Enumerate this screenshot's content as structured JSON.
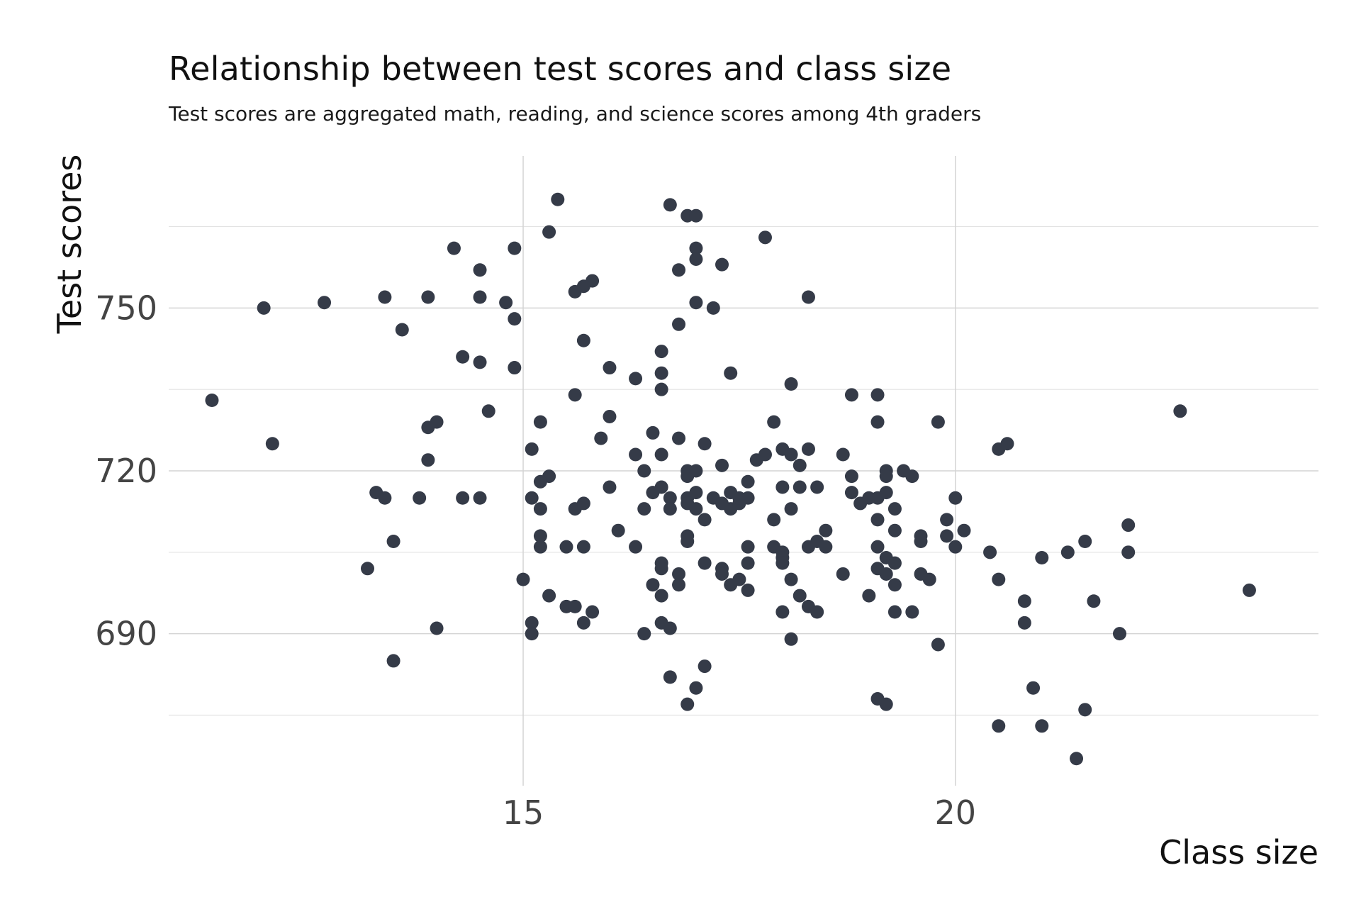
{
  "chart_data": {
    "type": "scatter",
    "title": "Relationship between test scores and class size",
    "subtitle": "Test scores are aggregated math, reading, and science scores among 4th graders",
    "xlabel": "Class size",
    "ylabel": "Test scores",
    "xlim": [
      10.9,
      24.2
    ],
    "ylim": [
      662,
      778
    ],
    "x_ticks": [
      15,
      20
    ],
    "y_ticks": [
      690,
      720,
      750
    ],
    "grid": true,
    "point_color": "#353b48",
    "points": [
      [
        15.4,
        770
      ],
      [
        16.7,
        769
      ],
      [
        16.9,
        767
      ],
      [
        17.0,
        767
      ],
      [
        15.3,
        764
      ],
      [
        17.8,
        763
      ],
      [
        14.2,
        761
      ],
      [
        14.9,
        761
      ],
      [
        17.0,
        761
      ],
      [
        17.0,
        759
      ],
      [
        14.5,
        757
      ],
      [
        16.8,
        757
      ],
      [
        17.3,
        758
      ],
      [
        15.8,
        755
      ],
      [
        15.7,
        754
      ],
      [
        15.6,
        753
      ],
      [
        12.0,
        750
      ],
      [
        12.7,
        751
      ],
      [
        13.4,
        752
      ],
      [
        13.9,
        752
      ],
      [
        14.5,
        752
      ],
      [
        14.8,
        751
      ],
      [
        17.0,
        751
      ],
      [
        17.2,
        750
      ],
      [
        18.3,
        752
      ],
      [
        14.9,
        748
      ],
      [
        16.8,
        747
      ],
      [
        13.6,
        746
      ],
      [
        15.7,
        744
      ],
      [
        16.6,
        742
      ],
      [
        14.3,
        741
      ],
      [
        14.5,
        740
      ],
      [
        14.9,
        739
      ],
      [
        16.0,
        739
      ],
      [
        16.3,
        737
      ],
      [
        16.6,
        738
      ],
      [
        17.4,
        738
      ],
      [
        16.6,
        735
      ],
      [
        18.1,
        736
      ],
      [
        15.6,
        734
      ],
      [
        18.8,
        734
      ],
      [
        19.1,
        734
      ],
      [
        11.4,
        733
      ],
      [
        14.6,
        731
      ],
      [
        22.6,
        731
      ],
      [
        13.9,
        728
      ],
      [
        14.0,
        729
      ],
      [
        15.2,
        729
      ],
      [
        16.0,
        730
      ],
      [
        17.9,
        729
      ],
      [
        19.1,
        729
      ],
      [
        19.8,
        729
      ],
      [
        12.1,
        725
      ],
      [
        15.1,
        724
      ],
      [
        15.9,
        726
      ],
      [
        16.5,
        727
      ],
      [
        16.8,
        726
      ],
      [
        17.1,
        725
      ],
      [
        20.5,
        724
      ],
      [
        20.6,
        725
      ],
      [
        13.9,
        722
      ],
      [
        16.3,
        723
      ],
      [
        16.6,
        723
      ],
      [
        17.7,
        722
      ],
      [
        17.8,
        723
      ],
      [
        18.0,
        724
      ],
      [
        18.1,
        723
      ],
      [
        18.3,
        724
      ],
      [
        18.7,
        723
      ],
      [
        15.3,
        719
      ],
      [
        15.2,
        718
      ],
      [
        16.4,
        720
      ],
      [
        16.9,
        720
      ],
      [
        16.9,
        719
      ],
      [
        17.0,
        720
      ],
      [
        17.3,
        721
      ],
      [
        18.2,
        721
      ],
      [
        18.8,
        719
      ],
      [
        19.2,
        720
      ],
      [
        19.2,
        719
      ],
      [
        19.4,
        720
      ],
      [
        19.5,
        719
      ],
      [
        13.3,
        716
      ],
      [
        13.4,
        715
      ],
      [
        13.8,
        715
      ],
      [
        14.3,
        715
      ],
      [
        14.5,
        715
      ],
      [
        15.1,
        715
      ],
      [
        15.2,
        713
      ],
      [
        15.6,
        713
      ],
      [
        15.7,
        714
      ],
      [
        16.0,
        717
      ],
      [
        16.5,
        716
      ],
      [
        16.6,
        717
      ],
      [
        16.7,
        715
      ],
      [
        16.7,
        713
      ],
      [
        16.9,
        715
      ],
      [
        16.9,
        714
      ],
      [
        17.0,
        716
      ],
      [
        17.0,
        713
      ],
      [
        17.2,
        715
      ],
      [
        17.3,
        714
      ],
      [
        17.4,
        716
      ],
      [
        17.4,
        713
      ],
      [
        17.5,
        714
      ],
      [
        17.5,
        715
      ],
      [
        17.6,
        718
      ],
      [
        17.6,
        715
      ],
      [
        18.0,
        717
      ],
      [
        18.2,
        717
      ],
      [
        18.4,
        717
      ],
      [
        18.8,
        716
      ],
      [
        18.9,
        714
      ],
      [
        19.0,
        715
      ],
      [
        19.1,
        715
      ],
      [
        19.2,
        716
      ],
      [
        19.3,
        713
      ],
      [
        20.0,
        715
      ],
      [
        16.1,
        709
      ],
      [
        16.4,
        713
      ],
      [
        17.1,
        711
      ],
      [
        17.9,
        711
      ],
      [
        18.1,
        713
      ],
      [
        18.5,
        709
      ],
      [
        19.1,
        711
      ],
      [
        19.3,
        709
      ],
      [
        19.6,
        708
      ],
      [
        19.9,
        711
      ],
      [
        19.9,
        708
      ],
      [
        20.1,
        709
      ],
      [
        13.5,
        707
      ],
      [
        15.2,
        708
      ],
      [
        15.2,
        706
      ],
      [
        15.5,
        706
      ],
      [
        15.7,
        706
      ],
      [
        16.3,
        706
      ],
      [
        16.9,
        708
      ],
      [
        16.9,
        707
      ],
      [
        17.6,
        706
      ],
      [
        17.9,
        706
      ],
      [
        18.0,
        705
      ],
      [
        18.3,
        706
      ],
      [
        18.4,
        707
      ],
      [
        18.5,
        706
      ],
      [
        19.1,
        706
      ],
      [
        19.2,
        704
      ],
      [
        19.6,
        707
      ],
      [
        20.0,
        706
      ],
      [
        20.4,
        705
      ],
      [
        21.0,
        704
      ],
      [
        21.3,
        705
      ],
      [
        21.5,
        707
      ],
      [
        22.0,
        705
      ],
      [
        22.0,
        710
      ],
      [
        13.2,
        702
      ],
      [
        16.6,
        703
      ],
      [
        16.6,
        702
      ],
      [
        16.8,
        701
      ],
      [
        17.1,
        703
      ],
      [
        17.3,
        702
      ],
      [
        17.3,
        701
      ],
      [
        17.5,
        700
      ],
      [
        17.6,
        703
      ],
      [
        18.0,
        704
      ],
      [
        18.0,
        703
      ],
      [
        19.1,
        702
      ],
      [
        19.2,
        701
      ],
      [
        19.3,
        703
      ],
      [
        19.6,
        701
      ],
      [
        19.7,
        700
      ],
      [
        15.0,
        700
      ],
      [
        16.5,
        699
      ],
      [
        16.6,
        697
      ],
      [
        16.8,
        699
      ],
      [
        17.4,
        699
      ],
      [
        17.6,
        698
      ],
      [
        18.1,
        700
      ],
      [
        18.2,
        697
      ],
      [
        18.3,
        695
      ],
      [
        18.7,
        701
      ],
      [
        19.0,
        697
      ],
      [
        19.3,
        699
      ],
      [
        20.5,
        700
      ],
      [
        20.8,
        696
      ],
      [
        21.6,
        696
      ],
      [
        23.4,
        698
      ],
      [
        15.3,
        697
      ],
      [
        15.5,
        695
      ],
      [
        15.6,
        695
      ],
      [
        15.8,
        694
      ],
      [
        15.7,
        692
      ],
      [
        16.6,
        692
      ],
      [
        16.7,
        691
      ],
      [
        15.1,
        692
      ],
      [
        15.1,
        690
      ],
      [
        14.0,
        691
      ],
      [
        16.4,
        690
      ],
      [
        18.0,
        694
      ],
      [
        18.4,
        694
      ],
      [
        19.3,
        694
      ],
      [
        19.5,
        694
      ],
      [
        20.8,
        692
      ],
      [
        21.9,
        690
      ],
      [
        18.1,
        689
      ],
      [
        19.8,
        688
      ],
      [
        13.5,
        685
      ],
      [
        17.1,
        684
      ],
      [
        16.7,
        682
      ],
      [
        17.0,
        680
      ],
      [
        16.9,
        677
      ],
      [
        19.1,
        678
      ],
      [
        19.2,
        677
      ],
      [
        20.9,
        680
      ],
      [
        21.5,
        676
      ],
      [
        20.5,
        673
      ],
      [
        21.0,
        673
      ],
      [
        21.4,
        667
      ]
    ]
  }
}
